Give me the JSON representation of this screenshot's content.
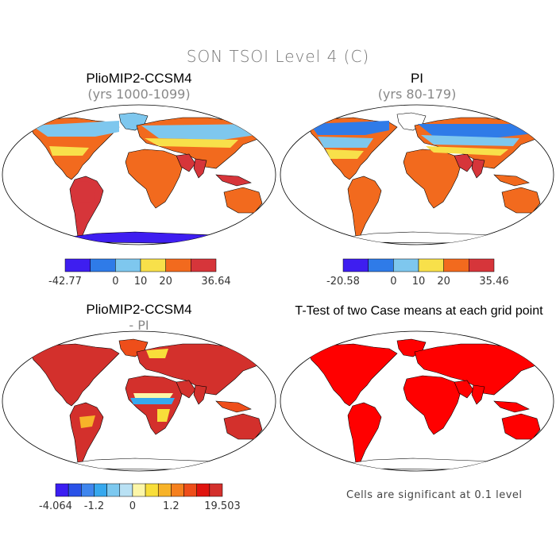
{
  "figure_title": "SON TSOI Level 4 (C)",
  "panels": [
    {
      "title": "PlioMIP2-CCSM4",
      "subtitle": "(yrs 1000-1099)",
      "colorbar": {
        "colors": [
          "#3e1ef0",
          "#2f7be8",
          "#7ec7ee",
          "#f8e04a",
          "#f26a1e",
          "#d6353a"
        ],
        "labels": [
          "-42.77",
          "0",
          "10",
          "20",
          "36.64"
        ]
      }
    },
    {
      "title": "PI",
      "subtitle": "(yrs 80-179)",
      "colorbar": {
        "colors": [
          "#3e1ef0",
          "#2f7be8",
          "#7ec7ee",
          "#f8e04a",
          "#f26a1e",
          "#d6353a"
        ],
        "labels": [
          "-20.58",
          "0",
          "10",
          "20",
          "35.46"
        ]
      }
    },
    {
      "title": "PlioMIP2-CCSM4",
      "subtitle": "- PI",
      "colorbar": {
        "colors": [
          "#3b1ef2",
          "#2a52e8",
          "#3f86ee",
          "#36a8ee",
          "#7cc8ef",
          "#b9e1f4",
          "#fcf6a8",
          "#f8de3a",
          "#f7b329",
          "#f5801e",
          "#ee4e1a",
          "#e0140f",
          "#d3302c"
        ],
        "labels": [
          "-4.064",
          "-1.2",
          "0",
          "1.2",
          "19.503"
        ]
      }
    },
    {
      "title": "T-Test of two Case means at each grid point",
      "footnote": "Cells are significant at 0.1 level"
    }
  ],
  "colors": {
    "ocean": "#ffffff",
    "outline": "#000000",
    "significant": "#ff0000"
  }
}
